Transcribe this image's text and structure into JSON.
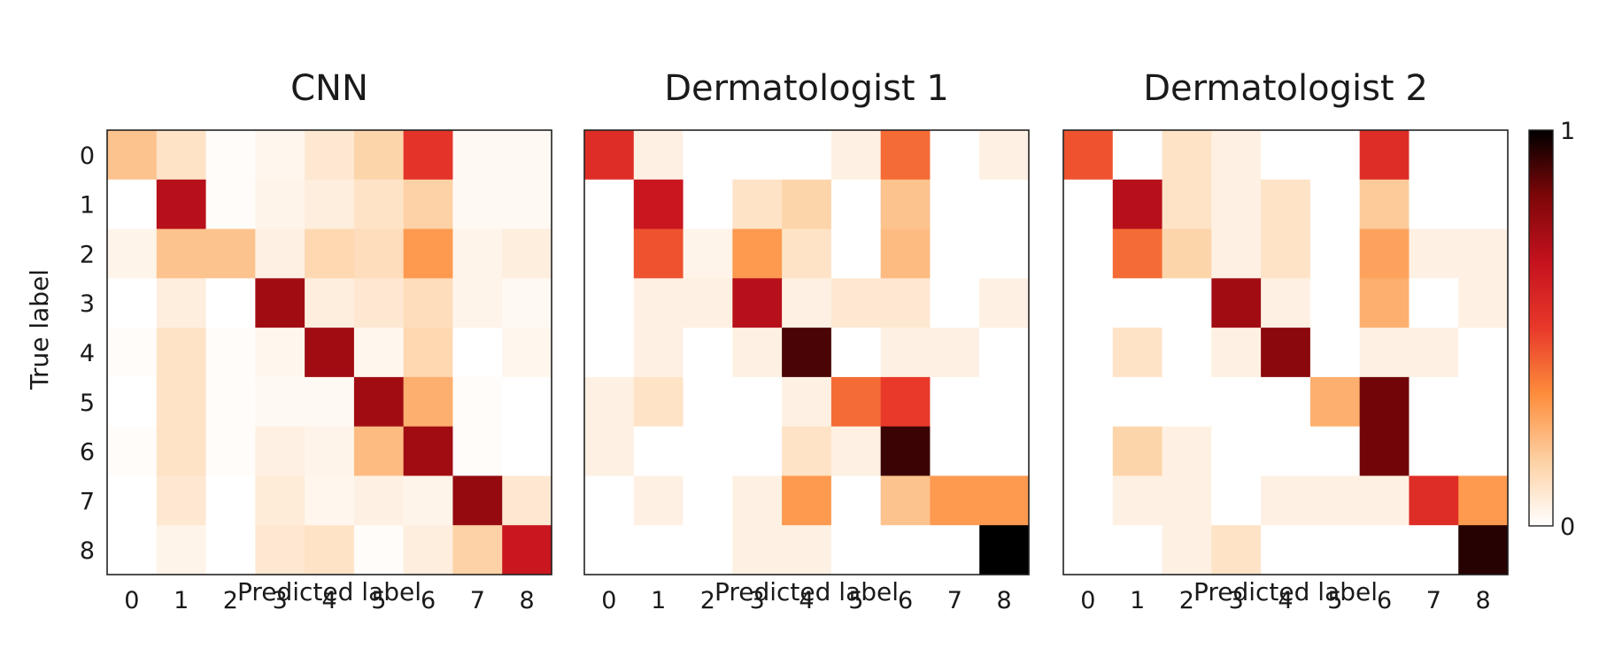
{
  "chart_data": {
    "type": "heatmap",
    "ylabel": "True label",
    "colorbar": {
      "min_label": "0",
      "max_label": "1",
      "range": [
        0,
        1
      ],
      "colormap": [
        "#ffffff",
        "#fdd0a2",
        "#fd8d3c",
        "#e8392a",
        "#c5121e",
        "#7d0608",
        "#000000"
      ]
    },
    "panels": [
      {
        "title": "CNN",
        "xlabel": "Predicted label",
        "x_ticks": [
          "0",
          "1",
          "2",
          "3",
          "4",
          "5",
          "6",
          "7",
          "8"
        ],
        "y_ticks": [
          "0",
          "1",
          "2",
          "3",
          "4",
          "5",
          "6",
          "7",
          "8"
        ],
        "values": [
          [
            0.2,
            0.1,
            0.01,
            0.03,
            0.08,
            0.15,
            0.52,
            0.02,
            0.02
          ],
          [
            0.0,
            0.7,
            0.01,
            0.04,
            0.06,
            0.1,
            0.16,
            0.02,
            0.02
          ],
          [
            0.04,
            0.2,
            0.2,
            0.05,
            0.14,
            0.12,
            0.3,
            0.04,
            0.06
          ],
          [
            0.0,
            0.06,
            0.0,
            0.75,
            0.06,
            0.08,
            0.12,
            0.04,
            0.02
          ],
          [
            0.01,
            0.1,
            0.01,
            0.03,
            0.75,
            0.03,
            0.14,
            0.0,
            0.03
          ],
          [
            0.0,
            0.1,
            0.01,
            0.02,
            0.02,
            0.75,
            0.25,
            0.01,
            0.0
          ],
          [
            0.01,
            0.1,
            0.01,
            0.05,
            0.04,
            0.22,
            0.75,
            0.01,
            0.0
          ],
          [
            0.0,
            0.08,
            0.0,
            0.07,
            0.03,
            0.05,
            0.04,
            0.78,
            0.08
          ],
          [
            0.0,
            0.04,
            0.0,
            0.08,
            0.1,
            0.01,
            0.06,
            0.16,
            0.65
          ]
        ]
      },
      {
        "title": "Dermatologist 1",
        "xlabel": "Predicted label",
        "x_ticks": [
          "0",
          "1",
          "2",
          "3",
          "4",
          "5",
          "6",
          "7",
          "8"
        ],
        "y_ticks": [
          "0",
          "1",
          "2",
          "3",
          "4",
          "5",
          "6",
          "7",
          "8"
        ],
        "values": [
          [
            0.55,
            0.05,
            0.0,
            0.0,
            0.0,
            0.05,
            0.4,
            0.0,
            0.05
          ],
          [
            0.0,
            0.65,
            0.0,
            0.1,
            0.15,
            0.0,
            0.2,
            0.0,
            0.0
          ],
          [
            0.0,
            0.45,
            0.04,
            0.3,
            0.1,
            0.0,
            0.22,
            0.0,
            0.0
          ],
          [
            0.0,
            0.05,
            0.05,
            0.7,
            0.05,
            0.08,
            0.08,
            0.0,
            0.05
          ],
          [
            0.0,
            0.05,
            0.0,
            0.05,
            0.9,
            0.0,
            0.05,
            0.05,
            0.0
          ],
          [
            0.05,
            0.1,
            0.0,
            0.0,
            0.05,
            0.4,
            0.5,
            0.0,
            0.0
          ],
          [
            0.05,
            0.0,
            0.0,
            0.0,
            0.1,
            0.05,
            0.92,
            0.0,
            0.0
          ],
          [
            0.0,
            0.05,
            0.0,
            0.05,
            0.3,
            0.0,
            0.2,
            0.3,
            0.3
          ],
          [
            0.0,
            0.0,
            0.0,
            0.05,
            0.05,
            0.0,
            0.0,
            0.0,
            1.0
          ]
        ]
      },
      {
        "title": "Dermatologist 2",
        "xlabel": "Predicted label",
        "x_ticks": [
          "0",
          "1",
          "2",
          "3",
          "4",
          "5",
          "6",
          "7",
          "8"
        ],
        "y_ticks": [
          "0",
          "1",
          "2",
          "3",
          "4",
          "5",
          "6",
          "7",
          "8"
        ],
        "values": [
          [
            0.45,
            0.0,
            0.1,
            0.05,
            0.0,
            0.0,
            0.55,
            0.0,
            0.0
          ],
          [
            0.0,
            0.7,
            0.1,
            0.05,
            0.1,
            0.0,
            0.18,
            0.0,
            0.0
          ],
          [
            0.0,
            0.4,
            0.15,
            0.05,
            0.1,
            0.0,
            0.28,
            0.05,
            0.05
          ],
          [
            0.0,
            0.0,
            0.0,
            0.75,
            0.05,
            0.0,
            0.25,
            0.0,
            0.05
          ],
          [
            0.0,
            0.1,
            0.0,
            0.05,
            0.8,
            0.0,
            0.05,
            0.05,
            0.0
          ],
          [
            0.0,
            0.0,
            0.0,
            0.0,
            0.0,
            0.25,
            0.85,
            0.0,
            0.0
          ],
          [
            0.0,
            0.15,
            0.05,
            0.0,
            0.0,
            0.0,
            0.85,
            0.0,
            0.0
          ],
          [
            0.0,
            0.05,
            0.05,
            0.0,
            0.05,
            0.05,
            0.05,
            0.55,
            0.3
          ],
          [
            0.0,
            0.0,
            0.05,
            0.1,
            0.0,
            0.0,
            0.0,
            0.0,
            0.95
          ]
        ]
      }
    ]
  }
}
